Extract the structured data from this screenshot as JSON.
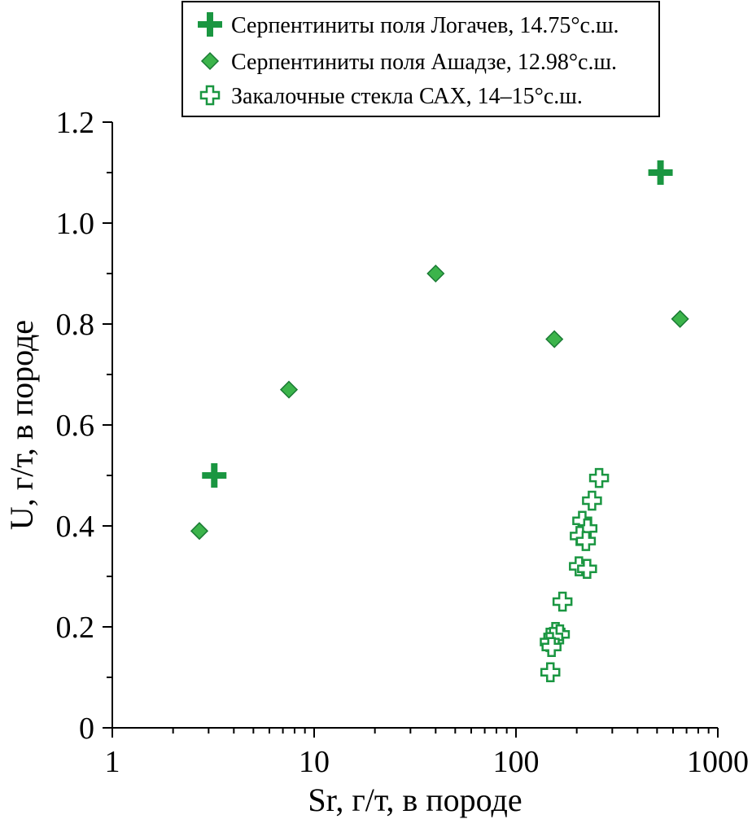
{
  "chart_data": {
    "type": "scatter",
    "xlabel": "Sr, г/т, в породе",
    "ylabel": "U, г/т, в породе",
    "xscale": "log",
    "xlim": [
      1,
      1000
    ],
    "ylim": [
      0,
      1.2
    ],
    "x_tick_labels": [
      "1",
      "10",
      "100",
      "1000"
    ],
    "x_ticks": [
      1,
      10,
      100,
      1000
    ],
    "y_tick_labels": [
      "0",
      "0.2",
      "0.4",
      "0.6",
      "0.8",
      "1.0",
      "1.2"
    ],
    "y_ticks": [
      0,
      0.2,
      0.4,
      0.6,
      0.8,
      1.0,
      1.2
    ],
    "grid": false,
    "legend_position": "top",
    "colors": {
      "solid": "#1a9641",
      "diamond_fill": "#3cb44b",
      "diamond_stroke": "#1a7a34",
      "open": "#1a9641"
    },
    "series": [
      {
        "name": "Серпентиниты поля Логачев, 14.75°с.ш.",
        "marker": "cross-filled",
        "points": [
          {
            "x": 3.2,
            "y": 0.5
          },
          {
            "x": 520,
            "y": 1.1
          }
        ]
      },
      {
        "name": "Серпентиниты поля Ашадзе, 12.98°с.ш.",
        "marker": "diamond",
        "points": [
          {
            "x": 2.7,
            "y": 0.39
          },
          {
            "x": 7.5,
            "y": 0.67
          },
          {
            "x": 40,
            "y": 0.9
          },
          {
            "x": 155,
            "y": 0.77
          },
          {
            "x": 650,
            "y": 0.81
          }
        ]
      },
      {
        "name": "Закалочные стекла САХ, 14–15°с.ш.",
        "marker": "cross-open",
        "points": [
          {
            "x": 258,
            "y": 0.495
          },
          {
            "x": 238,
            "y": 0.45
          },
          {
            "x": 213,
            "y": 0.41
          },
          {
            "x": 226,
            "y": 0.395
          },
          {
            "x": 207,
            "y": 0.38
          },
          {
            "x": 222,
            "y": 0.37
          },
          {
            "x": 205,
            "y": 0.32
          },
          {
            "x": 225,
            "y": 0.315
          },
          {
            "x": 170,
            "y": 0.25
          },
          {
            "x": 157,
            "y": 0.19
          },
          {
            "x": 165,
            "y": 0.185
          },
          {
            "x": 153,
            "y": 0.18
          },
          {
            "x": 147,
            "y": 0.17
          },
          {
            "x": 150,
            "y": 0.16
          },
          {
            "x": 148,
            "y": 0.11
          }
        ]
      }
    ]
  }
}
